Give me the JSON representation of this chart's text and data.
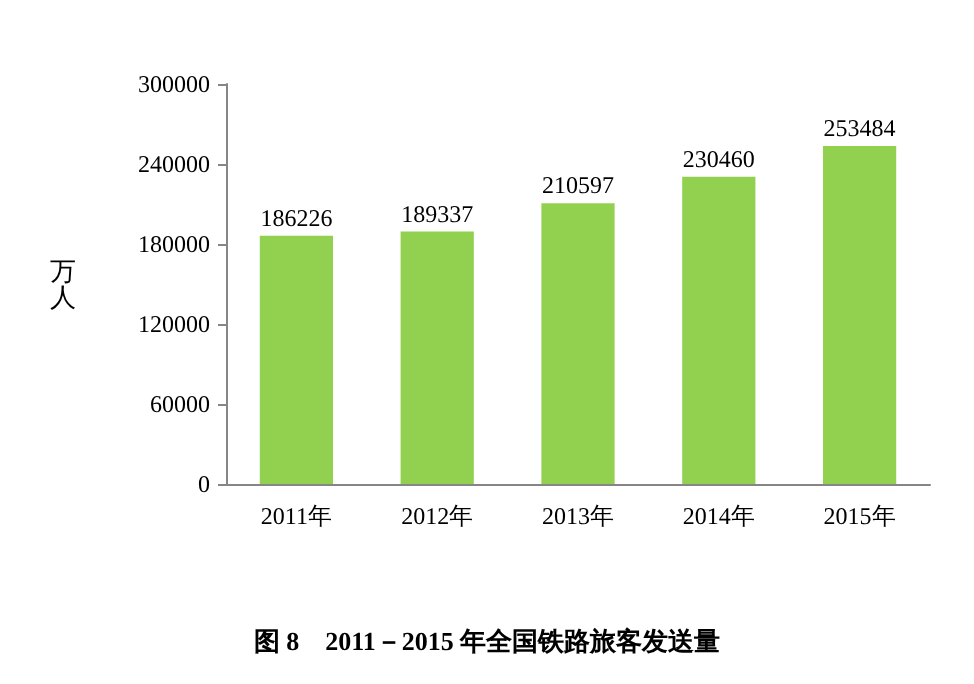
{
  "chart_data": {
    "type": "bar",
    "title": "图 8    2011－2015 年全国铁路旅客发送量",
    "ylabel": "万人",
    "categories": [
      "2011年",
      "2012年",
      "2013年",
      "2014年",
      "2015年"
    ],
    "values": [
      186226,
      189337,
      210597,
      230460,
      253484
    ],
    "color": "#92d050",
    "ylim": [
      0,
      300000
    ],
    "yticks": [
      0,
      60000,
      120000,
      180000,
      240000,
      300000
    ],
    "data_labels": true,
    "grid": false
  }
}
